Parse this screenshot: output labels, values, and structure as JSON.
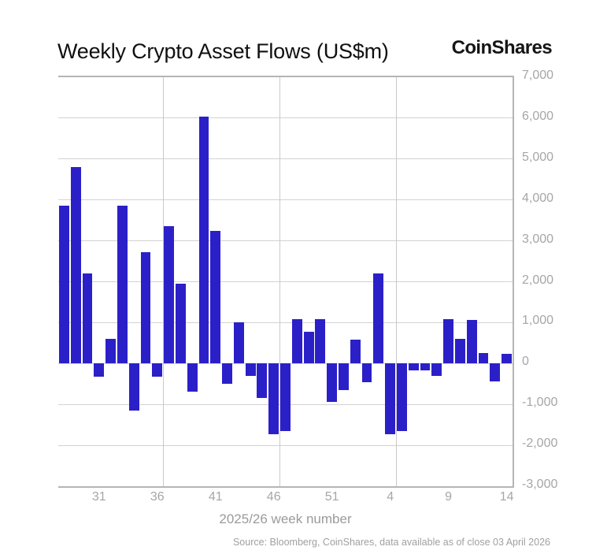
{
  "header": {
    "title": "Weekly Crypto Asset Flows (US$m)",
    "logo": "CoinShares"
  },
  "footer": {
    "source": "Source: Bloomberg, CoinShares, data available as of close 03 April 2026"
  },
  "chart_data": {
    "type": "bar",
    "title": "Weekly Crypto Asset Flows (US$m)",
    "xlabel": "2025/26 week number",
    "ylabel": "",
    "categories": [
      "28",
      "29",
      "30",
      "31",
      "32",
      "33",
      "34",
      "35",
      "36",
      "37",
      "38",
      "39",
      "40",
      "41",
      "42",
      "43",
      "44",
      "45",
      "46",
      "47",
      "48",
      "49",
      "50",
      "51",
      "52",
      "1",
      "2",
      "3",
      "4",
      "5",
      "6",
      "7",
      "8",
      "9",
      "10",
      "11",
      "12",
      "13",
      "14"
    ],
    "values": [
      3850,
      4800,
      2200,
      -320,
      600,
      3850,
      -1150,
      2720,
      -330,
      3350,
      1950,
      -680,
      6030,
      3250,
      -500,
      1000,
      -310,
      -850,
      -1730,
      -1650,
      1080,
      770,
      1080,
      -930,
      -650,
      580,
      -450,
      2200,
      -1720,
      -1660,
      -170,
      -170,
      -310,
      1080,
      600,
      1060,
      250,
      -430,
      240
    ],
    "ylim": [
      -3000,
      7000
    ],
    "y_tick_step": 1000,
    "y_tick_labels": [
      "7,000",
      "6,000",
      "5,000",
      "4,000",
      "3,000",
      "2,000",
      "1,000",
      "0",
      "-1,000",
      "-2,000",
      "-3,000"
    ],
    "x_tick_labels": [
      "31",
      "36",
      "41",
      "46",
      "51",
      "4",
      "9",
      "14"
    ],
    "x_gridlines_after_weeks": [
      "36",
      "46",
      "4",
      "14"
    ],
    "grid": true,
    "legend": false,
    "bar_color": "#2b20c8",
    "gridline_color": "#d2d2d2",
    "axis_border_color": "#b5b5b5",
    "tick_label_color": "#a6a6a6"
  }
}
